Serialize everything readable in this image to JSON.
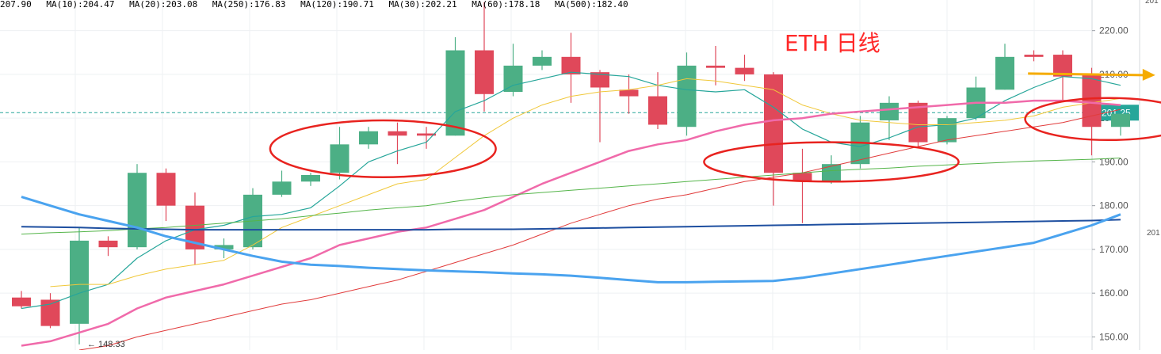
{
  "chart_data": {
    "type": "candlestick",
    "title": "ETH 日线",
    "ylim": [
      147,
      227
    ],
    "y_ticks": [
      "150.00",
      "160.00",
      "170.00",
      "180.00",
      "190.00",
      "200.00",
      "210.00",
      "220.00"
    ],
    "right_edge_labels": [
      "201",
      "201"
    ],
    "current_price_label": "201.25",
    "min_marker_label": "148.33",
    "legend": [
      {
        "label": "207.90",
        "color": "#26a69a"
      },
      {
        "label": "MA(10):204.47",
        "color": "#e6c84a"
      },
      {
        "label": "MA(20):203.08",
        "color": "#f06aaa"
      },
      {
        "label": "MA(250):176.83",
        "color": "#1e4fa0"
      },
      {
        "label": "MA(120):190.71",
        "color": "#55b54a"
      },
      {
        "label": "MA(30):202.21",
        "color": "#e13c3c"
      },
      {
        "label": "MA(60):178.18",
        "color": "#4aa3ef"
      },
      {
        "label": "MA(500):182.40",
        "color": "#555555"
      }
    ],
    "candles": [
      {
        "open": 159.0,
        "high": 160.5,
        "low": 156.5,
        "close": 157.0
      },
      {
        "open": 158.5,
        "high": 160.0,
        "low": 152.0,
        "close": 152.5
      },
      {
        "open": 153.0,
        "high": 175.0,
        "low": 148.3,
        "close": 172.0
      },
      {
        "open": 172.0,
        "high": 173.0,
        "low": 168.5,
        "close": 170.5
      },
      {
        "open": 170.5,
        "high": 189.5,
        "low": 170.0,
        "close": 187.5
      },
      {
        "open": 187.5,
        "high": 188.5,
        "low": 176.5,
        "close": 180.0
      },
      {
        "open": 180.0,
        "high": 183.0,
        "low": 166.5,
        "close": 170.0
      },
      {
        "open": 170.0,
        "high": 172.5,
        "low": 168.0,
        "close": 171.0
      },
      {
        "open": 170.5,
        "high": 184.0,
        "low": 170.0,
        "close": 182.5
      },
      {
        "open": 182.5,
        "high": 188.0,
        "low": 182.0,
        "close": 185.5
      },
      {
        "open": 185.5,
        "high": 187.5,
        "low": 184.5,
        "close": 187.0
      },
      {
        "open": 187.5,
        "high": 198.0,
        "low": 186.0,
        "close": 194.0
      },
      {
        "open": 194.0,
        "high": 198.0,
        "low": 193.0,
        "close": 197.0
      },
      {
        "open": 197.0,
        "high": 199.0,
        "low": 189.5,
        "close": 196.0
      },
      {
        "open": 196.5,
        "high": 198.0,
        "low": 193.0,
        "close": 196.0
      },
      {
        "open": 196.0,
        "high": 218.5,
        "low": 196.0,
        "close": 215.5
      },
      {
        "open": 215.5,
        "high": 226.5,
        "low": 201.5,
        "close": 205.5
      },
      {
        "open": 206.0,
        "high": 217.0,
        "low": 205.0,
        "close": 212.0
      },
      {
        "open": 212.0,
        "high": 215.5,
        "low": 211.0,
        "close": 214.0
      },
      {
        "open": 214.0,
        "high": 219.5,
        "low": 203.5,
        "close": 210.0
      },
      {
        "open": 210.5,
        "high": 211.0,
        "low": 194.5,
        "close": 207.0
      },
      {
        "open": 206.5,
        "high": 210.0,
        "low": 201.0,
        "close": 205.0
      },
      {
        "open": 205.0,
        "high": 210.5,
        "low": 197.5,
        "close": 198.5
      },
      {
        "open": 198.0,
        "high": 215.0,
        "low": 196.0,
        "close": 212.0
      },
      {
        "open": 212.0,
        "high": 216.5,
        "low": 207.5,
        "close": 211.5
      },
      {
        "open": 211.5,
        "high": 214.5,
        "low": 208.5,
        "close": 210.0
      },
      {
        "open": 210.0,
        "high": 210.5,
        "low": 180.0,
        "close": 187.5
      },
      {
        "open": 187.5,
        "high": 193.0,
        "low": 176.0,
        "close": 185.5
      },
      {
        "open": 185.5,
        "high": 191.5,
        "low": 185.0,
        "close": 189.5
      },
      {
        "open": 189.5,
        "high": 200.5,
        "low": 188.5,
        "close": 199.0
      },
      {
        "open": 199.5,
        "high": 205.0,
        "low": 195.0,
        "close": 203.5
      },
      {
        "open": 203.5,
        "high": 204.0,
        "low": 193.5,
        "close": 194.5
      },
      {
        "open": 194.5,
        "high": 200.5,
        "low": 194.0,
        "close": 200.0
      },
      {
        "open": 200.0,
        "high": 209.5,
        "low": 199.5,
        "close": 207.0
      },
      {
        "open": 206.5,
        "high": 217.0,
        "low": 206.5,
        "close": 214.0
      },
      {
        "open": 214.5,
        "high": 215.5,
        "low": 213.0,
        "close": 214.0
      },
      {
        "open": 214.5,
        "high": 215.5,
        "low": 204.0,
        "close": 209.5
      },
      {
        "open": 210.0,
        "high": 211.5,
        "low": 191.5,
        "close": 198.0
      },
      {
        "open": 198.0,
        "high": 201.0,
        "low": 196.0,
        "close": 201.0
      }
    ],
    "ma_series": [
      {
        "color": "#26a69a",
        "width": 1.2,
        "values": [
          156.5,
          157.5,
          160.0,
          162.0,
          168.0,
          172.0,
          174.5,
          175.5,
          177.5,
          178.0,
          179.5,
          184.5,
          190.0,
          192.5,
          194.5,
          201.5,
          204.0,
          207.5,
          209.0,
          210.5,
          210.0,
          209.5,
          207.5,
          206.5,
          206.0,
          206.5,
          202.5,
          197.5,
          194.5,
          193.5,
          195.5,
          198.0,
          198.5,
          200.0,
          204.0,
          207.0,
          209.5,
          209.0,
          207.5
        ]
      },
      {
        "color": "#f0c83a",
        "width": 1.0,
        "values": [
          null,
          161.5,
          162.0,
          162.0,
          164.0,
          165.5,
          166.5,
          167.5,
          171.0,
          175.0,
          177.5,
          180.0,
          182.5,
          185.0,
          186.0,
          191.0,
          196.0,
          200.0,
          203.0,
          205.0,
          206.0,
          206.5,
          207.5,
          209.0,
          208.5,
          207.5,
          206.5,
          203.0,
          201.0,
          199.5,
          199.0,
          198.5,
          198.5,
          199.0,
          199.5,
          200.5,
          202.5,
          203.5,
          204.5
        ]
      },
      {
        "color": "#f06aaa",
        "width": 2.5,
        "values": [
          148.0,
          149.0,
          151.0,
          153.0,
          156.5,
          159.0,
          160.5,
          162.0,
          164.0,
          166.0,
          168.0,
          171.0,
          172.5,
          174.0,
          175.0,
          177.0,
          179.0,
          182.0,
          185.0,
          187.5,
          190.0,
          192.5,
          194.0,
          195.0,
          197.0,
          198.5,
          199.5,
          200.0,
          201.0,
          201.5,
          202.0,
          202.5,
          203.0,
          203.5,
          203.5,
          204.0,
          204.0,
          203.5,
          203.0
        ]
      },
      {
        "color": "#e13c3c",
        "width": 1.0,
        "values": [
          null,
          null,
          147.0,
          148.0,
          150.0,
          151.5,
          153.0,
          154.5,
          156.0,
          157.5,
          158.5,
          160.0,
          161.5,
          163.0,
          165.0,
          167.0,
          169.0,
          171.0,
          173.5,
          176.0,
          178.0,
          180.0,
          181.5,
          182.5,
          184.0,
          185.5,
          186.5,
          187.5,
          189.0,
          190.5,
          192.0,
          193.5,
          195.0,
          196.0,
          197.0,
          198.0,
          199.0,
          200.5,
          202.0
        ]
      },
      {
        "color": "#55b54a",
        "width": 1.0,
        "values": [
          173.5,
          173.8,
          174.0,
          174.3,
          174.7,
          175.0,
          175.5,
          176.0,
          176.5,
          177.0,
          177.7,
          178.3,
          179.0,
          179.5,
          180.0,
          181.0,
          181.8,
          182.5,
          183.0,
          183.5,
          184.0,
          184.5,
          185.0,
          185.5,
          186.0,
          186.5,
          187.0,
          187.5,
          188.0,
          188.3,
          188.6,
          189.0,
          189.3,
          189.6,
          189.9,
          190.2,
          190.4,
          190.6,
          190.9
        ]
      },
      {
        "color": "#1e4fa0",
        "width": 2.0,
        "values": [
          175.2,
          175.1,
          175.0,
          174.8,
          174.7,
          174.6,
          174.5,
          174.5,
          174.5,
          174.5,
          174.5,
          174.5,
          174.5,
          174.5,
          174.5,
          174.6,
          174.6,
          174.6,
          174.7,
          174.8,
          174.9,
          175.0,
          175.1,
          175.2,
          175.3,
          175.4,
          175.5,
          175.6,
          175.7,
          175.8,
          175.9,
          176.0,
          176.1,
          176.2,
          176.3,
          176.4,
          176.5,
          176.6,
          176.8
        ]
      },
      {
        "color": "#4aa3ef",
        "width": 3.0,
        "values": [
          182.0,
          180.0,
          178.0,
          176.5,
          175.0,
          173.0,
          171.5,
          170.0,
          168.5,
          167.2,
          166.5,
          166.2,
          165.8,
          165.5,
          165.2,
          165.0,
          164.8,
          164.5,
          164.3,
          164.0,
          163.5,
          163.0,
          162.5,
          162.5,
          162.6,
          162.7,
          162.8,
          163.5,
          164.5,
          165.5,
          166.5,
          167.5,
          168.5,
          169.5,
          170.5,
          171.5,
          173.5,
          175.5,
          178.0
        ]
      }
    ],
    "annotations": {
      "ellipses": [
        {
          "cx_index": 12.5,
          "cy": 193.0,
          "rx_bars": 3.9,
          "ry": 6.5
        },
        {
          "cx_index": 28.0,
          "cy": 190.0,
          "rx_bars": 4.4,
          "ry": 4.5
        },
        {
          "cx_index": 37.6,
          "cy": 199.8,
          "rx_bars": 2.9,
          "ry": 4.8
        }
      ],
      "arrow": {
        "from_index": 34.8,
        "to_index": 39.2,
        "y": 210.0,
        "color": "#f5ab00"
      }
    }
  }
}
